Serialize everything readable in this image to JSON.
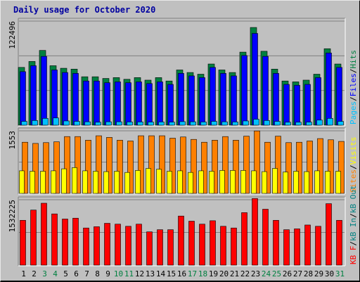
{
  "title": "Daily usage for October 2020",
  "colors": {
    "background": "#c0c0c0",
    "hits": "#008040",
    "files": "#0000ff",
    "pages": "#00c0ff",
    "visits": "#ffff00",
    "sites": "#ff8000",
    "kb_in": "#008080",
    "kb_out": "#ff0000",
    "weekend_label": "#008040",
    "weekday_label": "#000000",
    "title": "#0000a0"
  },
  "chart_data": [
    {
      "type": "bar",
      "panel": "top",
      "ytick": "122496",
      "ymax": 122496,
      "legend": [
        "Pages",
        "/",
        "Files",
        "/",
        "Hits"
      ],
      "legend_colors": [
        "#00c0ff",
        "#000000",
        "#0000ff",
        "#000000",
        "#008040"
      ],
      "categories": [
        "1",
        "2",
        "3",
        "4",
        "5",
        "6",
        "7",
        "8",
        "9",
        "10",
        "11",
        "12",
        "13",
        "14",
        "15",
        "16",
        "17",
        "18",
        "19",
        "20",
        "21",
        "22",
        "23",
        "24",
        "25",
        "26",
        "27",
        "28",
        "29",
        "30",
        "31"
      ],
      "series": [
        {
          "name": "Hits",
          "values": [
            68000,
            75000,
            88000,
            70000,
            67000,
            66000,
            57000,
            57000,
            55000,
            56000,
            54000,
            56000,
            53000,
            56000,
            52000,
            65000,
            62000,
            60000,
            72000,
            65000,
            62000,
            86000,
            115000,
            87000,
            66000,
            52000,
            51000,
            53000,
            60000,
            90000,
            72000
          ]
        },
        {
          "name": "Files",
          "values": [
            63000,
            70000,
            81000,
            65000,
            62000,
            61000,
            52000,
            52000,
            50000,
            51000,
            50000,
            51000,
            49000,
            51000,
            48000,
            61000,
            58000,
            56000,
            68000,
            61000,
            58000,
            82000,
            108000,
            81000,
            61000,
            48000,
            47000,
            48000,
            56000,
            85000,
            68000
          ]
        },
        {
          "name": "Pages",
          "values": [
            4500,
            5500,
            8000,
            8500,
            5000,
            4500,
            4000,
            3500,
            4000,
            4000,
            3800,
            3800,
            3700,
            3800,
            3600,
            4200,
            4000,
            3800,
            4500,
            4000,
            3800,
            5000,
            7000,
            5500,
            4500,
            3500,
            3500,
            3600,
            6000,
            8000,
            4500
          ]
        }
      ]
    },
    {
      "type": "bar",
      "panel": "middle",
      "ytick": "1553",
      "ymax": 1553,
      "legend": [
        "Sites",
        "/",
        "Visits"
      ],
      "legend_colors": [
        "#ff8000",
        "#000000",
        "#ffff00"
      ],
      "categories": [
        "1",
        "2",
        "3",
        "4",
        "5",
        "6",
        "7",
        "8",
        "9",
        "10",
        "11",
        "12",
        "13",
        "14",
        "15",
        "16",
        "17",
        "18",
        "19",
        "20",
        "21",
        "22",
        "23",
        "24",
        "25",
        "26",
        "27",
        "28",
        "29",
        "30",
        "31"
      ],
      "series": [
        {
          "name": "Sites",
          "values": [
            1270,
            1240,
            1260,
            1280,
            1410,
            1410,
            1320,
            1430,
            1390,
            1320,
            1300,
            1430,
            1430,
            1430,
            1370,
            1400,
            1340,
            1270,
            1320,
            1410,
            1320,
            1420,
            1550,
            1270,
            1420,
            1260,
            1270,
            1300,
            1360,
            1330,
            1290
          ]
        },
        {
          "name": "Visits",
          "values": [
            560,
            550,
            550,
            560,
            610,
            640,
            560,
            550,
            540,
            550,
            520,
            570,
            620,
            600,
            550,
            560,
            520,
            560,
            550,
            570,
            570,
            570,
            560,
            540,
            620,
            530,
            550,
            540,
            560,
            550,
            550
          ]
        }
      ]
    },
    {
      "type": "bar",
      "panel": "bottom",
      "ytick": "1532225",
      "ymax": 1532225,
      "legend": [
        "KB F",
        "/",
        "kB In",
        "/",
        "kB Out"
      ],
      "legend_colors": [
        "#ff0000",
        "#000000",
        "#008080",
        "#000000",
        "#008080"
      ],
      "categories": [
        "1",
        "2",
        "3",
        "4",
        "5",
        "6",
        "7",
        "8",
        "9",
        "10",
        "11",
        "12",
        "13",
        "14",
        "15",
        "16",
        "17",
        "18",
        "19",
        "20",
        "21",
        "22",
        "23",
        "24",
        "25",
        "26",
        "27",
        "28",
        "29",
        "30",
        "31"
      ],
      "series": [
        {
          "name": "KB F",
          "values": [
            1050000,
            1290000,
            1450000,
            1200000,
            1080000,
            1100000,
            870000,
            900000,
            980000,
            960000,
            910000,
            960000,
            780000,
            830000,
            830000,
            1150000,
            1030000,
            960000,
            1040000,
            910000,
            870000,
            1230000,
            1560000,
            1310000,
            1050000,
            830000,
            850000,
            940000,
            910000,
            1440000,
            1050000
          ]
        }
      ]
    }
  ],
  "x_labels": {
    "weekend_days": [
      "3",
      "4",
      "10",
      "11",
      "17",
      "18",
      "24",
      "25",
      "31"
    ]
  }
}
